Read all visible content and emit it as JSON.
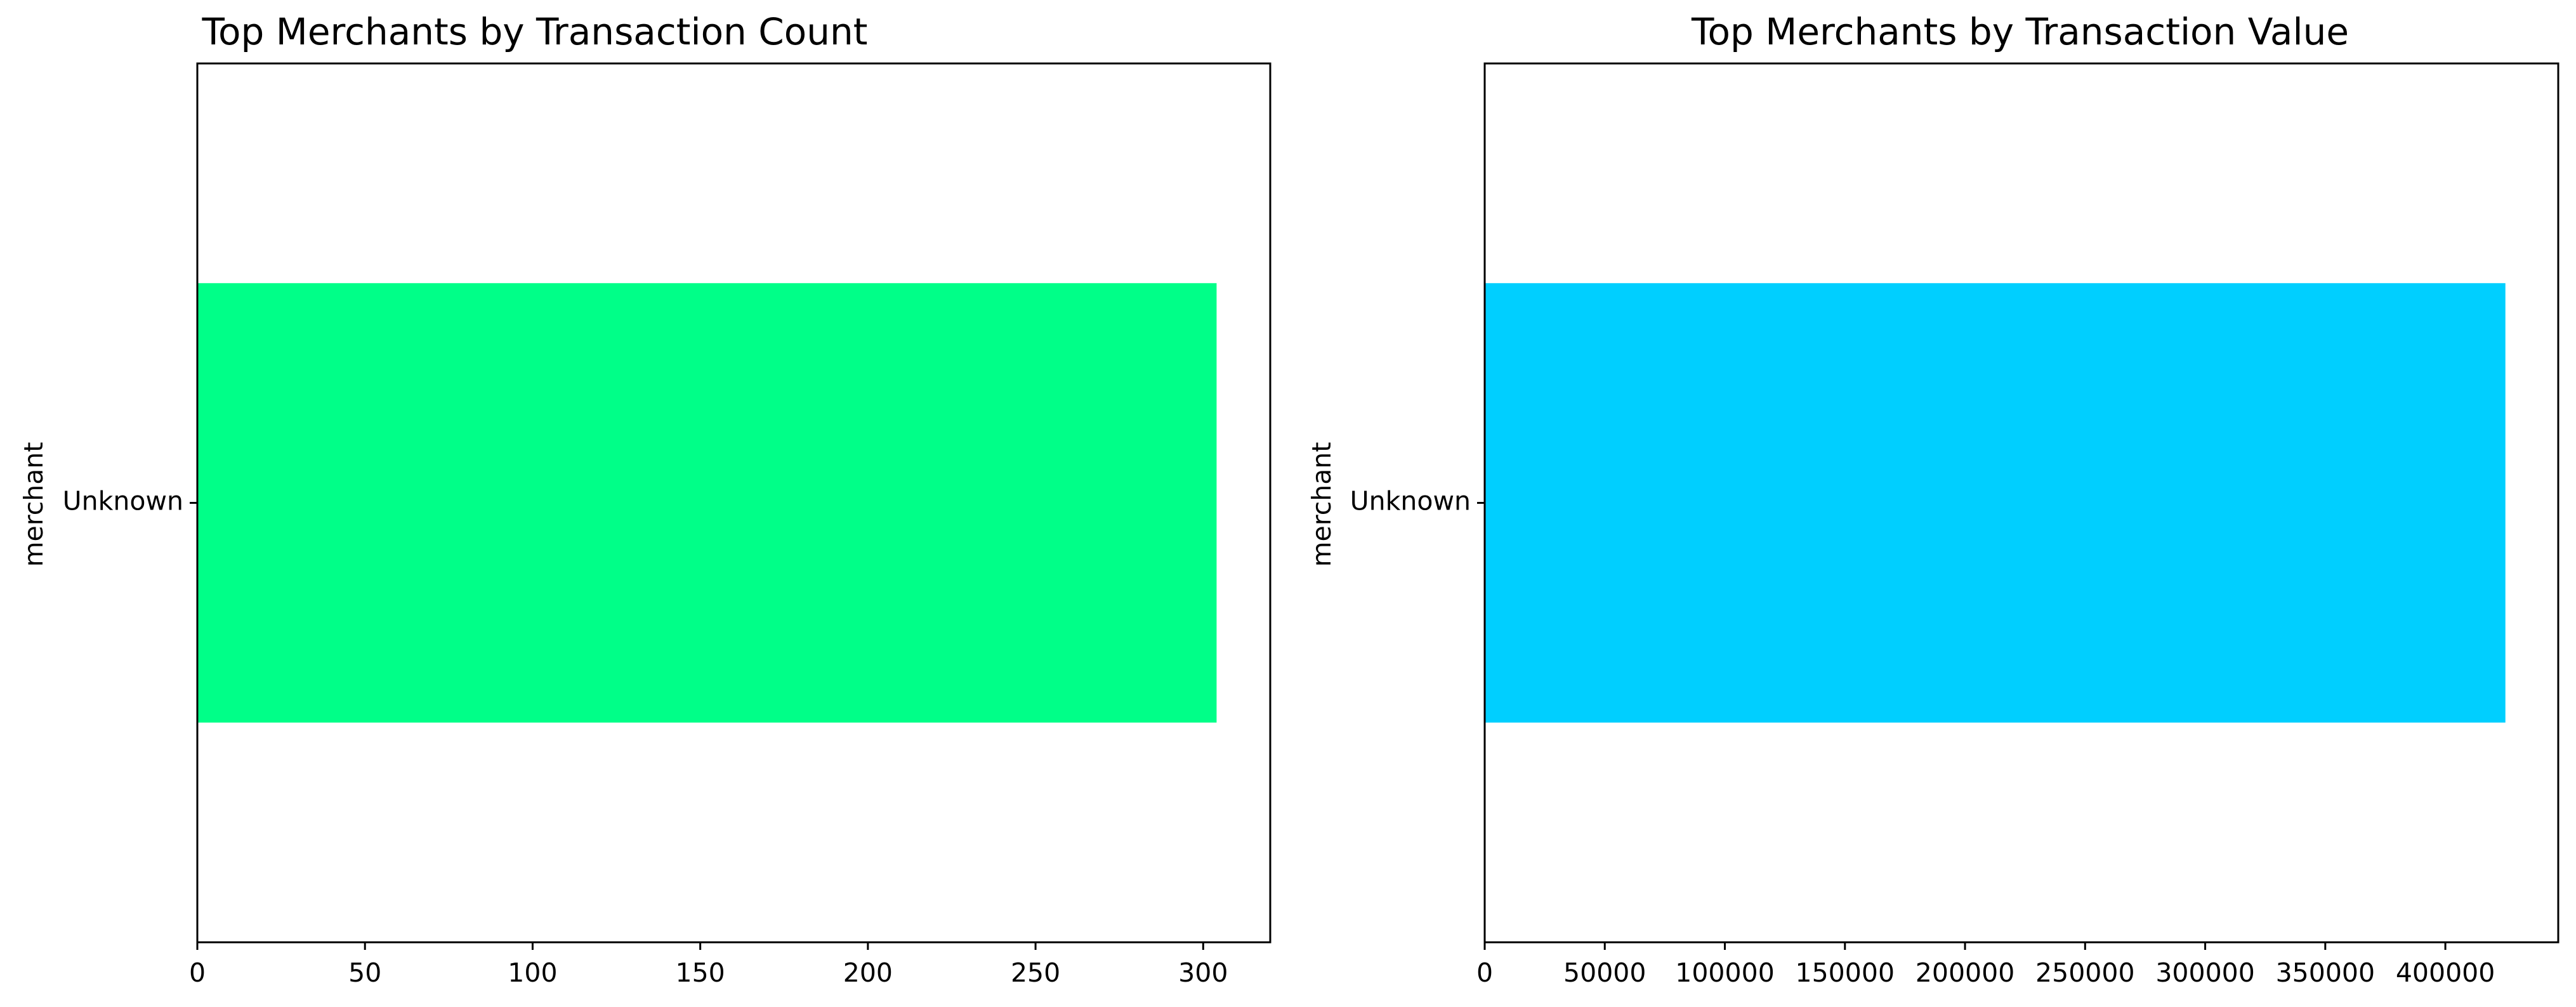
{
  "colors": {
    "count_bar": "#00ff88",
    "value_bar": "#00cfff",
    "axes": "#000000"
  },
  "chart_data": [
    {
      "type": "bar",
      "orientation": "horizontal",
      "title": "Top Merchants by Transaction Count",
      "xlabel": "",
      "ylabel": "merchant",
      "categories": [
        "Unknown"
      ],
      "values": [
        304
      ],
      "xlim": [
        0,
        320
      ],
      "xticks": [
        0,
        50,
        100,
        150,
        200,
        250,
        300
      ],
      "xtick_labels": [
        "0",
        "50",
        "100",
        "150",
        "200",
        "250",
        "300"
      ],
      "grid": false,
      "color": "#00ff88"
    },
    {
      "type": "bar",
      "orientation": "horizontal",
      "title": "Top Merchants by Transaction Value",
      "xlabel": "",
      "ylabel": "merchant",
      "categories": [
        "Unknown"
      ],
      "values": [
        425000
      ],
      "xlim": [
        0,
        447000
      ],
      "xticks": [
        0,
        50000,
        100000,
        150000,
        200000,
        250000,
        300000,
        350000,
        400000
      ],
      "xtick_labels": [
        "0",
        "50000",
        "100000",
        "150000",
        "200000",
        "250000",
        "300000",
        "350000",
        "400000"
      ],
      "grid": false,
      "color": "#00cfff"
    }
  ]
}
